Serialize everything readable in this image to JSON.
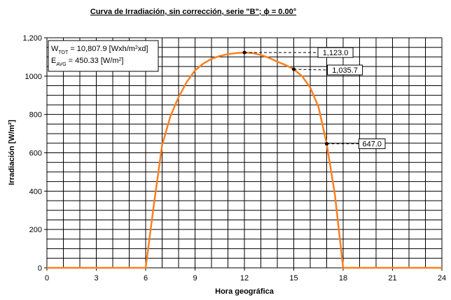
{
  "chart_data": {
    "type": "line",
    "title": "Curva de Irradiación, sin corrección, serie \"B\"; ϕ = 0.00°",
    "x_label": "Hora geográfica",
    "y_label": "Irradiación [W/m²]",
    "x": [
      0,
      1,
      2,
      3,
      4,
      5,
      6,
      6.5,
      7,
      7.5,
      8,
      8.5,
      9,
      9.5,
      10,
      10.5,
      11,
      11.5,
      12,
      12.5,
      13,
      13.5,
      14,
      14.5,
      15,
      15.5,
      16,
      16.5,
      17,
      17.5,
      18,
      19,
      20,
      21,
      22,
      23,
      24
    ],
    "series": [
      {
        "name": "Irradiación",
        "color": "#ff7f1e",
        "values": [
          0,
          0,
          0,
          0,
          0,
          0,
          0,
          330,
          640,
          790,
          890,
          970,
          1030,
          1065,
          1090,
          1105,
          1115,
          1120,
          1123,
          1120,
          1110,
          1095,
          1075,
          1058,
          1035.7,
          1000,
          940,
          840,
          647,
          380,
          0,
          0,
          0,
          0,
          0,
          0,
          0
        ]
      }
    ],
    "xlim": [
      0,
      24
    ],
    "xticks": [
      0,
      3,
      6,
      9,
      12,
      15,
      18,
      21,
      24
    ],
    "ylim": [
      0,
      1200
    ],
    "yticks": [
      0,
      200,
      400,
      600,
      800,
      1000,
      {
        "value": 1200,
        "label": "1,200"
      }
    ],
    "ytick_labels_override": null,
    "xgrid": [
      0,
      1,
      2,
      3,
      4,
      5,
      6,
      7,
      8,
      9,
      10,
      11,
      12,
      13,
      14,
      15,
      16,
      17,
      18,
      19,
      20,
      21,
      22,
      23,
      24
    ],
    "ygrid": [
      0,
      50,
      100,
      150,
      200,
      250,
      300,
      350,
      400,
      450,
      500,
      550,
      600,
      650,
      700,
      750,
      800,
      850,
      900,
      950,
      1000,
      1050,
      1100,
      1150,
      1200
    ],
    "annotations": [
      {
        "x": 12,
        "y": 1123,
        "label": "1,123.0"
      },
      {
        "x": 15,
        "y": 1035.7,
        "label": "1,035.7"
      },
      {
        "x": 17,
        "y": 647,
        "label": "647.0"
      }
    ],
    "info_box": [
      [
        "W",
        "TOT",
        " = 10,807.9 [Wxh/m",
        "2",
        "xd]"
      ],
      [
        "E",
        "AVG",
        " = 450.33 [W/m",
        "2",
        "]"
      ]
    ]
  }
}
